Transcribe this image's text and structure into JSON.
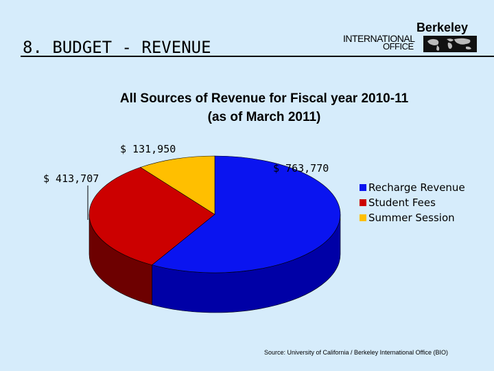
{
  "slide": {
    "title": "8. BUDGET - REVENUE"
  },
  "logo": {
    "line1": "Berkeley",
    "line2": "INTERNATIONAL",
    "line3": "OFFICE"
  },
  "chart_data": {
    "type": "pie",
    "title_line1": "All Sources of Revenue for Fiscal year 2010-11",
    "title_line2": "(as of March 2011)",
    "categories": [
      "Recharge Revenue",
      "Student Fees",
      "Summer Session"
    ],
    "values": [
      763770,
      413707,
      131950
    ],
    "value_labels": [
      "$ 763,770",
      "$ 413,707",
      "$ 131,950"
    ],
    "colors": [
      "#0a14f0",
      "#cc0000",
      "#ffbf00"
    ],
    "side_colors": [
      "#0000a6",
      "#6d0000",
      "#a07800"
    ],
    "legend_position": "right",
    "three_d": true
  },
  "source": "Source:  University of California / Berkeley International Office (BIO)"
}
